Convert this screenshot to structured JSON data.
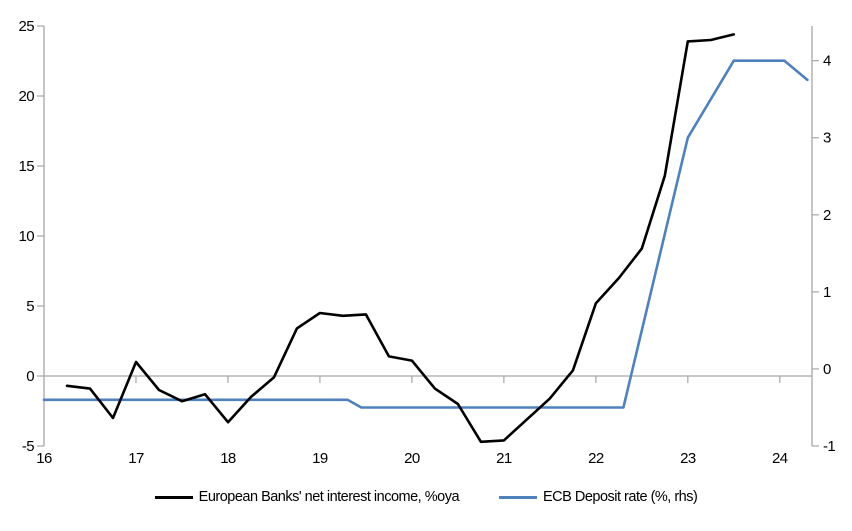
{
  "chart_data": {
    "type": "line",
    "title": "",
    "xlabel": "",
    "ylabel_left": "",
    "ylabel_right": "",
    "grid": "zero-line-only",
    "legend_position": "bottom-center",
    "x_axis": {
      "range": [
        16,
        24.35
      ],
      "ticks": [
        16,
        17,
        18,
        19,
        20,
        21,
        22,
        23,
        24
      ],
      "labels": [
        "16",
        "17",
        "18",
        "19",
        "20",
        "21",
        "22",
        "23",
        "24"
      ]
    },
    "y_axis_left": {
      "range": [
        -5,
        25
      ],
      "ticks": [
        25,
        20,
        15,
        10,
        5,
        0,
        -5
      ],
      "labels": [
        "25",
        "20",
        "15",
        "10",
        "5",
        "0",
        "-5"
      ]
    },
    "y_axis_right": {
      "range": [
        -1,
        4.45
      ],
      "ticks": [
        4,
        3,
        2,
        1,
        0,
        -1
      ],
      "labels": [
        "4",
        "3",
        "2",
        "1",
        "0",
        "-1"
      ]
    },
    "series": [
      {
        "name": "European Banks' net interest income, %oya",
        "axis": "left",
        "color": "#000000",
        "points": [
          [
            16.25,
            -0.7
          ],
          [
            16.5,
            -0.9
          ],
          [
            16.75,
            -3.0
          ],
          [
            17.0,
            1.0
          ],
          [
            17.25,
            -1.0
          ],
          [
            17.5,
            -1.8
          ],
          [
            17.75,
            -1.3
          ],
          [
            18.0,
            -3.3
          ],
          [
            18.25,
            -1.5
          ],
          [
            18.5,
            -0.1
          ],
          [
            18.75,
            3.4
          ],
          [
            19.0,
            4.5
          ],
          [
            19.25,
            4.3
          ],
          [
            19.5,
            4.4
          ],
          [
            19.75,
            1.4
          ],
          [
            20.0,
            1.1
          ],
          [
            20.25,
            -0.9
          ],
          [
            20.5,
            -2.0
          ],
          [
            20.75,
            -4.7
          ],
          [
            21.0,
            -4.6
          ],
          [
            21.25,
            -3.1
          ],
          [
            21.5,
            -1.6
          ],
          [
            21.75,
            0.4
          ],
          [
            22.0,
            5.2
          ],
          [
            22.25,
            7.0
          ],
          [
            22.5,
            9.1
          ],
          [
            22.75,
            14.3
          ],
          [
            23.0,
            23.9
          ],
          [
            23.25,
            24.0
          ],
          [
            23.5,
            24.4
          ]
        ]
      },
      {
        "name": "ECB Deposit rate (%, rhs)",
        "axis": "right",
        "color": "#4F81BD",
        "points": [
          [
            16.0,
            -0.4
          ],
          [
            19.3,
            -0.4
          ],
          [
            19.45,
            -0.5
          ],
          [
            22.3,
            -0.5
          ],
          [
            23.0,
            3.0
          ],
          [
            23.5,
            4.0
          ],
          [
            24.05,
            4.0
          ],
          [
            24.3,
            3.75
          ]
        ]
      }
    ]
  },
  "colors": {
    "axis": "#a6a6a6",
    "zero_line": "#a8a8a8",
    "text": "#000000",
    "background": "#ffffff",
    "series_black": "#000000",
    "series_blue": "#4F81BD"
  }
}
